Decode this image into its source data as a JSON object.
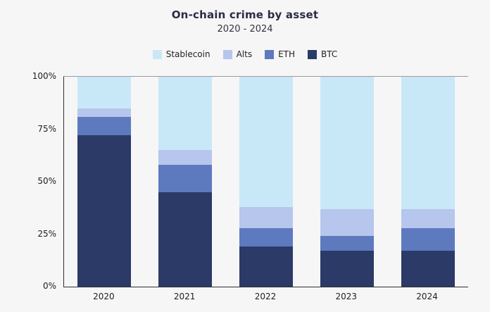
{
  "chart_data": {
    "type": "bar",
    "stacked": true,
    "title": "On-chain crime by asset",
    "subtitle": "2020 - 2024",
    "categories": [
      "2020",
      "2021",
      "2022",
      "2023",
      "2024"
    ],
    "series": [
      {
        "name": "Stablecoin",
        "color": "#c9e8f7",
        "values": [
          15,
          35,
          62,
          63,
          63
        ]
      },
      {
        "name": "Alts",
        "color": "#b6c6ec",
        "values": [
          4,
          7,
          10,
          13,
          9
        ]
      },
      {
        "name": "ETH",
        "color": "#5d7abe",
        "values": [
          9,
          13,
          9,
          7,
          11
        ]
      },
      {
        "name": "BTC",
        "color": "#2b3a67",
        "values": [
          72,
          45,
          19,
          17,
          17
        ]
      }
    ],
    "ylim": [
      0,
      100
    ],
    "yticks": [
      {
        "label": "100%",
        "value": 100
      },
      {
        "label": "75%",
        "value": 75
      },
      {
        "label": "50%",
        "value": 50
      },
      {
        "label": "25%",
        "value": 25
      },
      {
        "label": "0%",
        "value": 0
      }
    ],
    "legend_position": "top",
    "grid": false,
    "background": "#f6f6f7"
  }
}
